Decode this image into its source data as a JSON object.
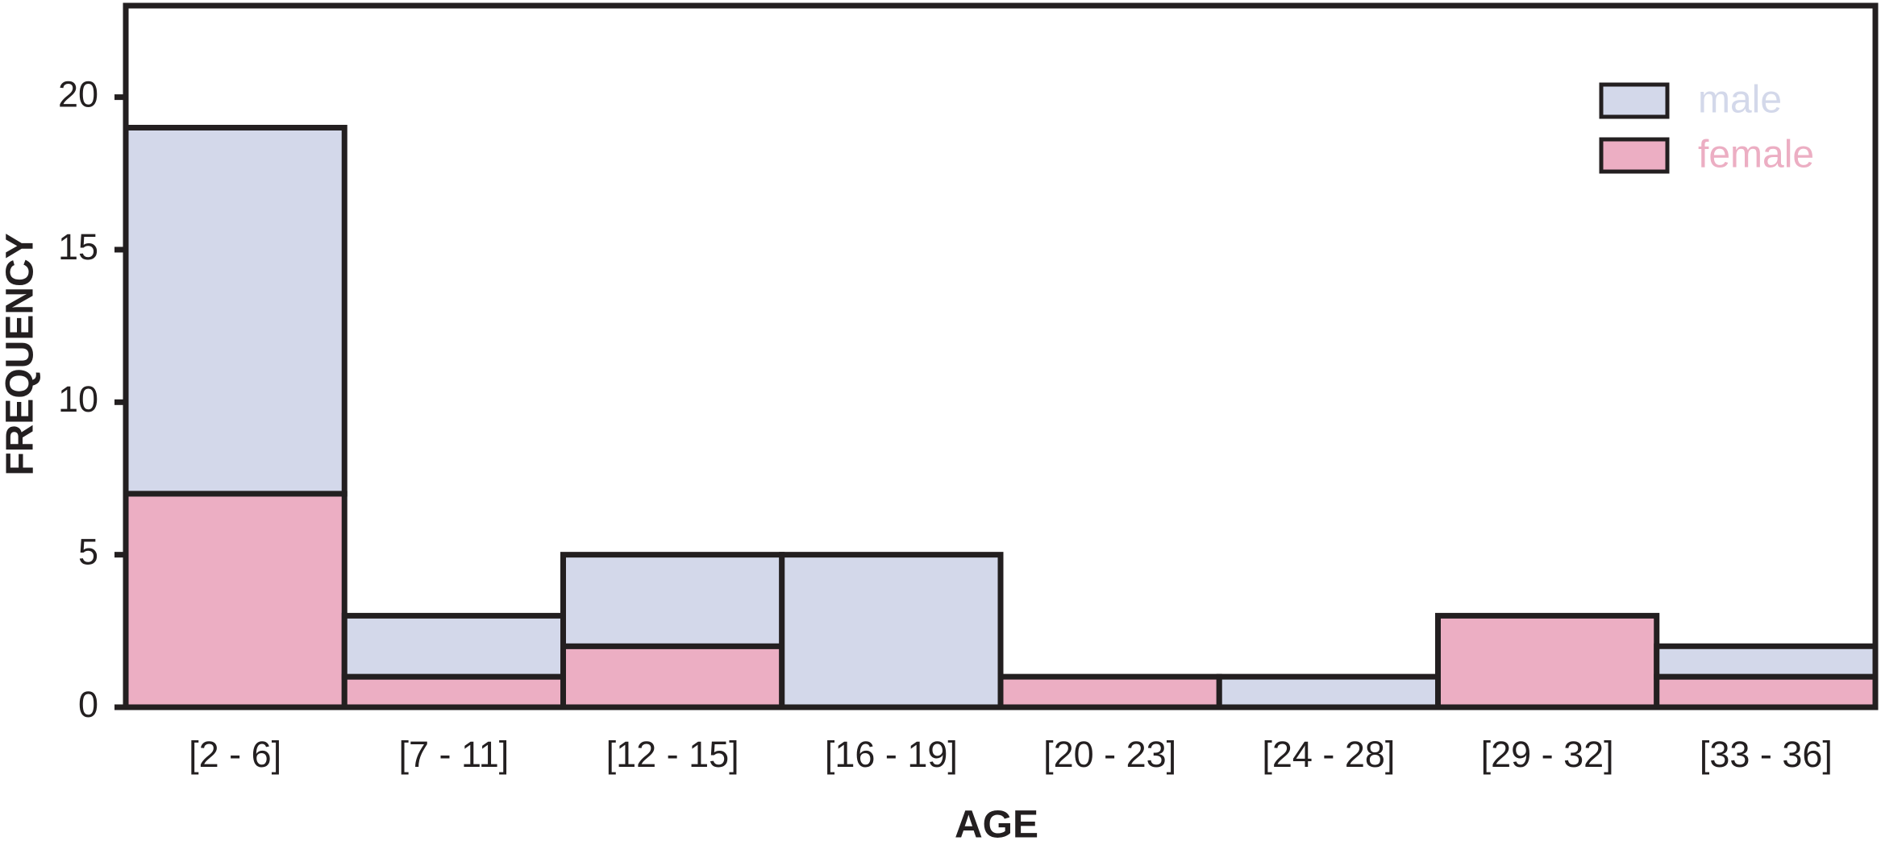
{
  "chart_data": {
    "type": "bar",
    "stacked": true,
    "x_label": "AGE",
    "y_label": "FREQUENCY",
    "categories": [
      "[2 - 6]",
      "[7 - 11]",
      "[12 - 15]",
      "[16 - 19]",
      "[20 - 23]",
      "[24 - 28]",
      "[29 - 32]",
      "[33 - 36]"
    ],
    "series": [
      {
        "name": "female",
        "color": "#ecaec3",
        "values": [
          7,
          1,
          2,
          0,
          1,
          0,
          3,
          1
        ]
      },
      {
        "name": "male",
        "color": "#d3d8ea",
        "values": [
          12,
          2,
          3,
          5,
          0,
          1,
          0,
          1
        ]
      }
    ],
    "legend_order": [
      "male",
      "female"
    ],
    "legend": "upper right",
    "ylim": [
      0,
      23
    ],
    "yticks": [
      0,
      5,
      10,
      15,
      20
    ],
    "grid": false
  }
}
